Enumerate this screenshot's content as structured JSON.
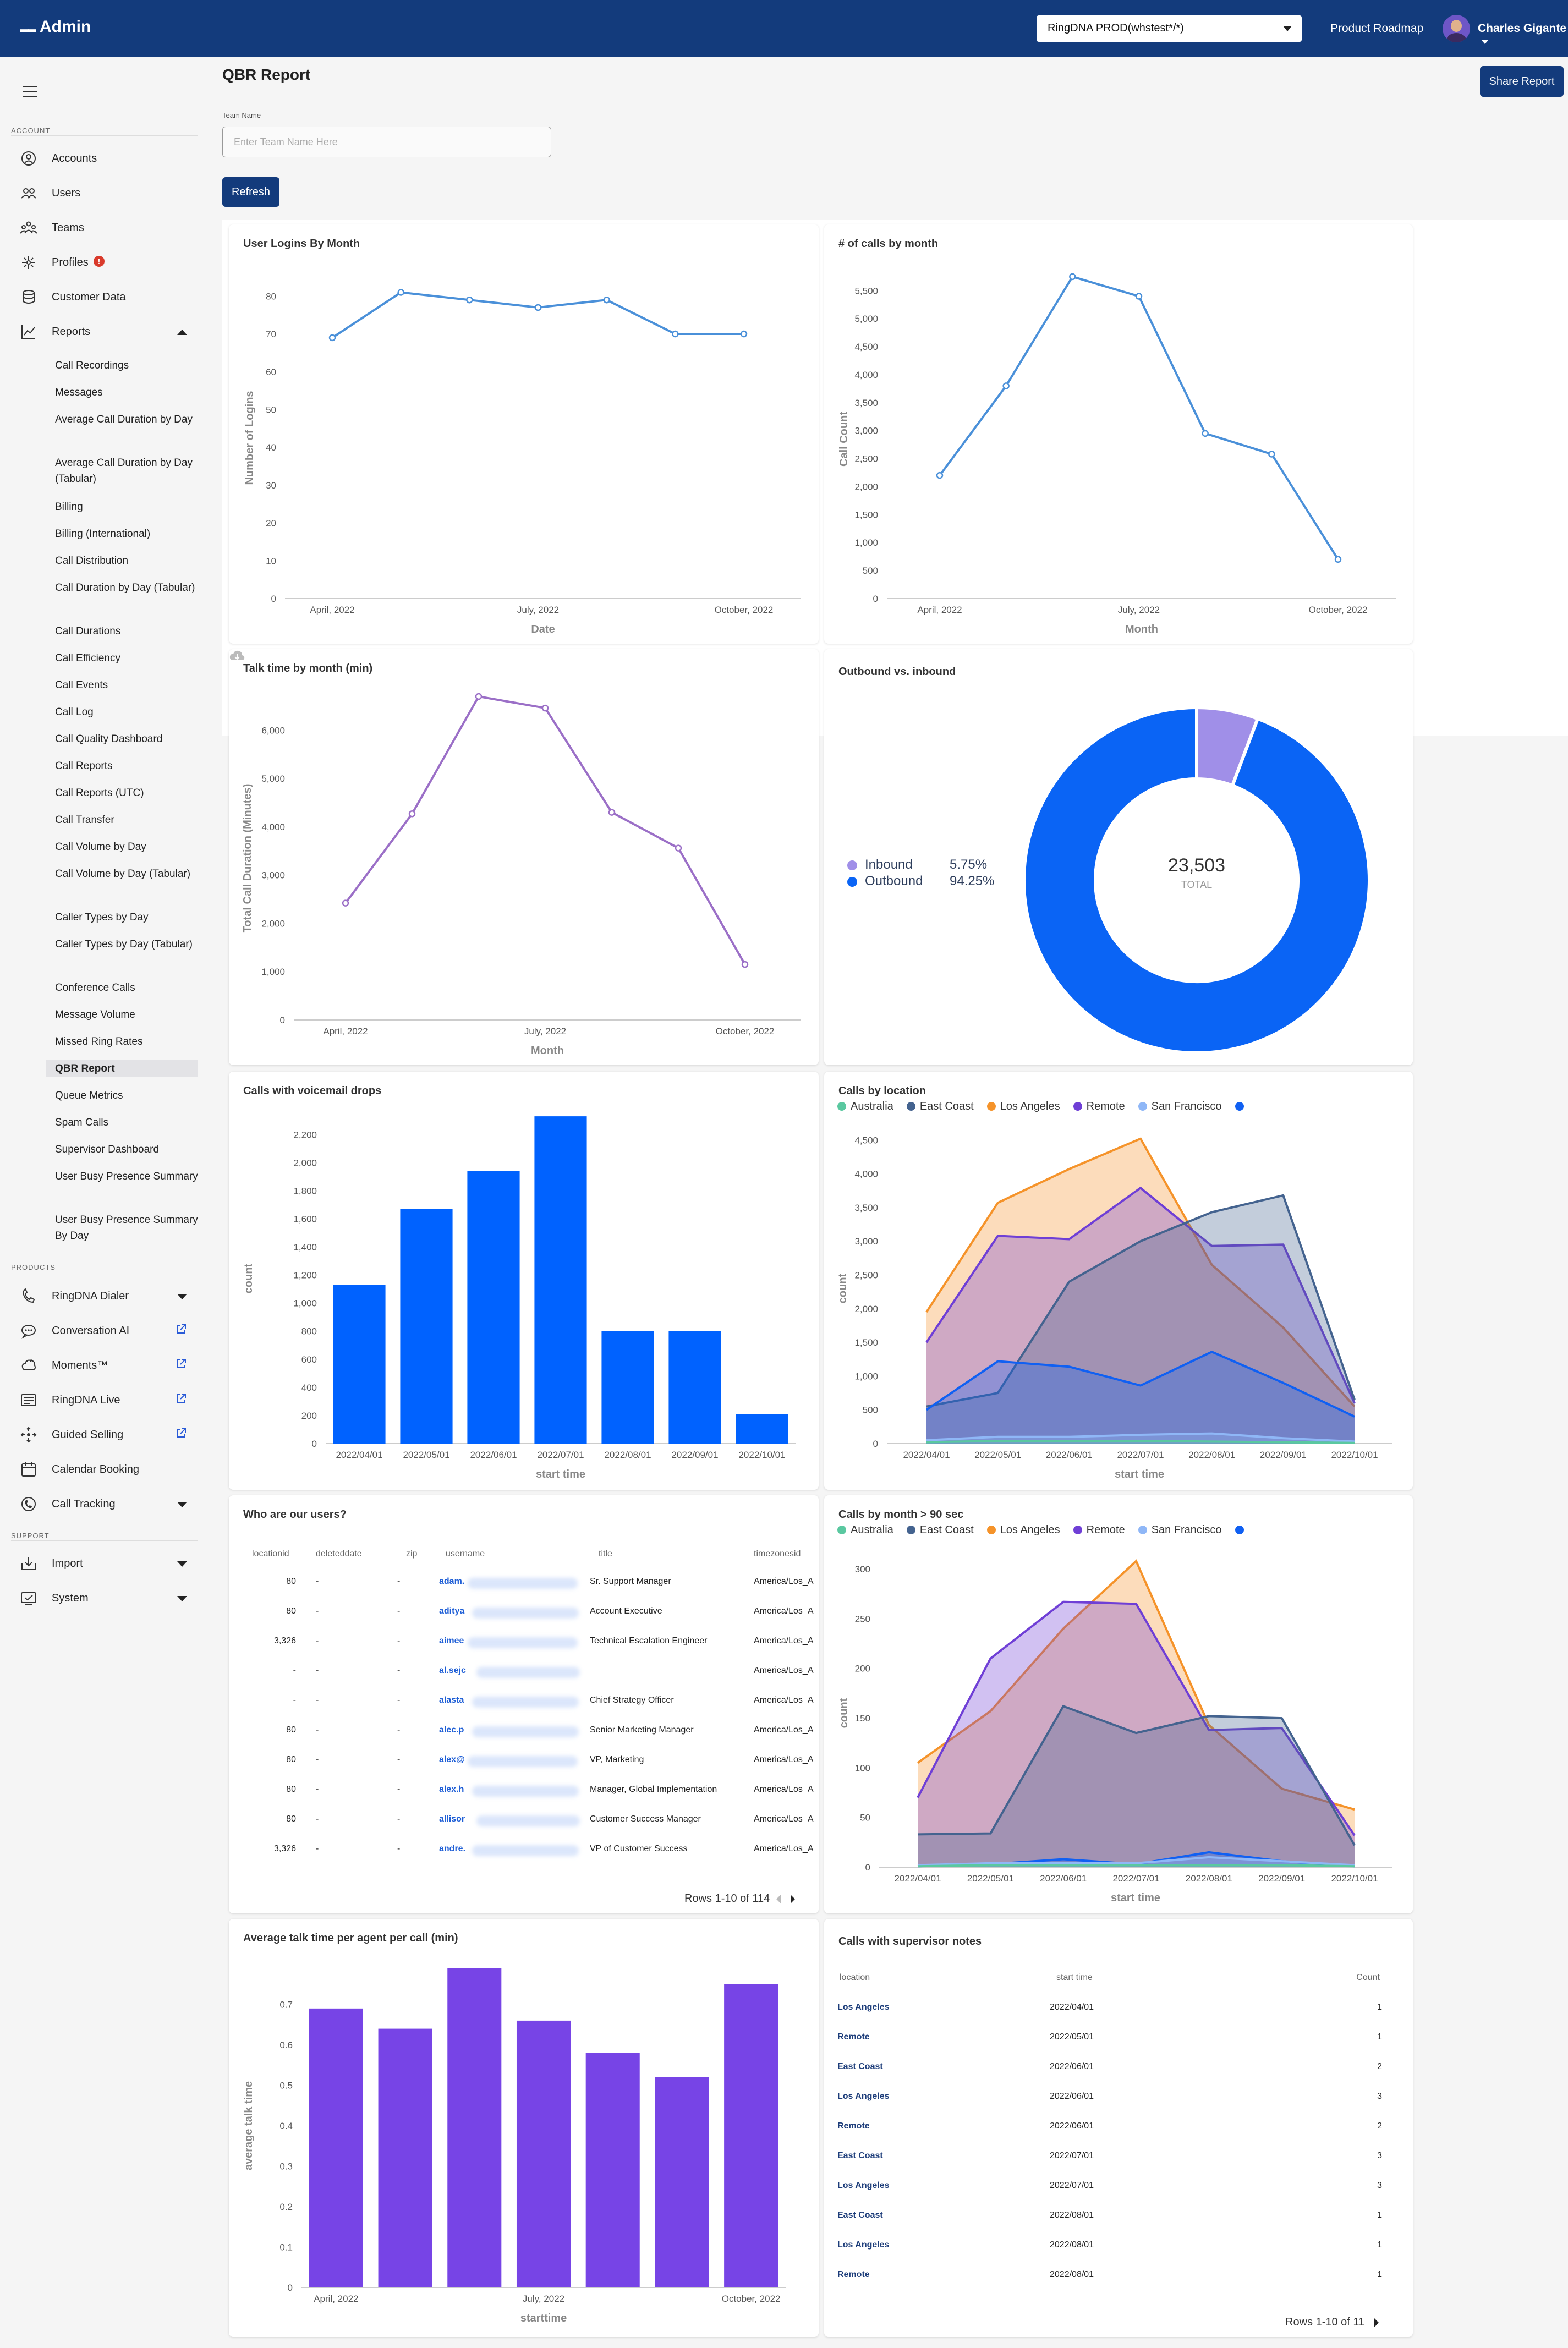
{
  "header": {
    "app_title": "Admin",
    "environment": "RingDNA PROD(whstest*/*)",
    "product_roadmap": "Product Roadmap",
    "user_name": "Charles Gigante"
  },
  "sidebar": {
    "account_section": "ACCOUNT",
    "account_items": [
      {
        "label": "Accounts",
        "icon": "accounts-icon"
      },
      {
        "label": "Users",
        "icon": "users-icon"
      },
      {
        "label": "Teams",
        "icon": "teams-icon"
      },
      {
        "label": "Profiles",
        "icon": "profiles-icon",
        "badge": "!"
      },
      {
        "label": "Customer Data",
        "icon": "database-icon"
      },
      {
        "label": "Reports",
        "icon": "chart-line-icon",
        "expanded": true
      }
    ],
    "report_items": [
      "Call Recordings",
      "Messages",
      "Average Call Duration by Day",
      "Average Call Duration by Day (Tabular)",
      "Billing",
      "Billing (International)",
      "Call Distribution",
      "Call Duration by Day (Tabular)",
      "Call Durations",
      "Call Efficiency",
      "Call Events",
      "Call Log",
      "Call Quality Dashboard",
      "Call Reports",
      "Call Reports (UTC)",
      "Call Transfer",
      "Call Volume by Day",
      "Call Volume by Day (Tabular)",
      "Caller Types by Day",
      "Caller Types by Day (Tabular)",
      "Conference Calls",
      "Message Volume",
      "Missed Ring Rates",
      "QBR Report",
      "Queue Metrics",
      "Spam Calls",
      "Supervisor Dashboard",
      "User Busy Presence Summary",
      "User Busy Presence Summary By Day"
    ],
    "active_report": "QBR Report",
    "products_section": "PRODUCTS",
    "product_items": [
      {
        "label": "RingDNA Dialer",
        "icon": "dialer-icon"
      },
      {
        "label": "Conversation AI",
        "icon": "conversation-ai-icon"
      },
      {
        "label": "Moments™",
        "icon": "moments-icon"
      },
      {
        "label": "RingDNA Live",
        "icon": "live-icon"
      },
      {
        "label": "Guided Selling",
        "icon": "guided-selling-icon"
      },
      {
        "label": "Calendar Booking",
        "icon": "calendar-icon"
      },
      {
        "label": "Call Tracking",
        "icon": "call-tracking-icon"
      }
    ],
    "support_section": "SUPPORT",
    "support_items": [
      {
        "label": "Import",
        "icon": "import-icon"
      },
      {
        "label": "System",
        "icon": "system-icon"
      }
    ]
  },
  "main": {
    "title": "QBR Report",
    "share_button": "Share Report",
    "team_label": "Team Name",
    "team_placeholder": "Enter Team Name Here",
    "team_value": "",
    "refresh_button": "Refresh"
  },
  "colors": {
    "header": "#133b7c",
    "blue_line": "#4a90d9",
    "purple_line": "#9b6fc7",
    "bar_blue": "#0062ff",
    "bar_purple": "#7744e6",
    "inbound": "#a08fe8",
    "outbound": "#0a64f5",
    "australia": "#5ac8a0",
    "east_coast": "#44638f",
    "los_angeles": "#f5932a",
    "remote": "#6f3fd6",
    "san_francisco": "#8fb7f7",
    "sixth_series": "#1060f2"
  },
  "charts": {
    "logins": {
      "title": "User Logins By Month",
      "chart_data": {
        "type": "line",
        "x": [
          "2022-04",
          "2022-05",
          "2022-06",
          "2022-07",
          "2022-08",
          "2022-09",
          "2022-10"
        ],
        "values": [
          69,
          81,
          79,
          77,
          79,
          70,
          70
        ],
        "ylim": [
          0,
          85
        ],
        "yticks": [
          0,
          10,
          20,
          30,
          40,
          50,
          60,
          70,
          80
        ],
        "xticks": [
          "April, 2022",
          "July, 2022",
          "October, 2022"
        ],
        "xlabel": "Date",
        "ylabel": "Number of Logins"
      }
    },
    "calls": {
      "title": "# of calls by month",
      "chart_data": {
        "type": "line",
        "x": [
          "2022-04",
          "2022-05",
          "2022-06",
          "2022-07",
          "2022-08",
          "2022-09",
          "2022-10"
        ],
        "values": [
          2200,
          3800,
          5750,
          5400,
          2950,
          2580,
          700
        ],
        "ylim": [
          0,
          5700
        ],
        "yticks": [
          0,
          500,
          1000,
          1500,
          2000,
          2500,
          3000,
          3500,
          4000,
          4500,
          5000,
          5500
        ],
        "ytick_labels": [
          "0",
          "500",
          "1,000",
          "1,500",
          "2,000",
          "2,500",
          "3,000",
          "3,500",
          "4,000",
          "4,500",
          "5,000",
          "5,500"
        ],
        "xticks": [
          "April, 2022",
          "July, 2022",
          "October, 2022"
        ],
        "xlabel": "Month",
        "ylabel": "Call Count"
      }
    },
    "talk": {
      "title": "Talk time by month (min)",
      "chart_data": {
        "type": "line",
        "x": [
          "2022-04",
          "2022-05",
          "2022-06",
          "2022-07",
          "2022-08",
          "2022-09",
          "2022-10"
        ],
        "values": [
          2420,
          4270,
          6700,
          6460,
          4300,
          3560,
          1150
        ],
        "ylim": [
          0,
          6700
        ],
        "yticks": [
          0,
          1000,
          2000,
          3000,
          4000,
          5000,
          6000
        ],
        "ytick_labels": [
          "0",
          "1,000",
          "2,000",
          "3,000",
          "4,000",
          "5,000",
          "6,000"
        ],
        "xticks": [
          "April, 2022",
          "July, 2022",
          "October, 2022"
        ],
        "xlabel": "Month",
        "ylabel": "Total Call Duration (Minutes)"
      }
    },
    "donut": {
      "title": "Outbound vs. inbound",
      "chart_data": {
        "type": "pie",
        "labels": [
          "Inbound",
          "Outbound"
        ],
        "values": [
          5.75,
          94.25
        ],
        "value_labels": [
          "5.75%",
          "94.25%"
        ],
        "total": "23,503",
        "total_label": "TOTAL"
      }
    },
    "voicemail": {
      "title": "Calls with voicemail drops",
      "chart_data": {
        "type": "bar",
        "categories": [
          "2022/04/01",
          "2022/05/01",
          "2022/06/01",
          "2022/07/01",
          "2022/08/01",
          "2022/09/01",
          "2022/10/01"
        ],
        "values": [
          1130,
          1670,
          1940,
          2330,
          800,
          800,
          210
        ],
        "ylim": [
          0,
          2350
        ],
        "yticks": [
          0,
          200,
          400,
          600,
          800,
          1000,
          1200,
          1400,
          1600,
          1800,
          2000,
          2200
        ],
        "ytick_labels": [
          "0",
          "200",
          "400",
          "600",
          "800",
          "1,000",
          "1,200",
          "1,400",
          "1,600",
          "1,800",
          "2,000",
          "2,200"
        ],
        "xlabel": "start time",
        "ylabel": "count"
      }
    },
    "location": {
      "title": "Calls by location",
      "legend": [
        "Australia",
        "East Coast",
        "Los Angeles",
        "Remote",
        "San Francisco",
        ""
      ],
      "chart_data": {
        "type": "area",
        "categories": [
          "2022/04/01",
          "2022/05/01",
          "2022/06/01",
          "2022/07/01",
          "2022/08/01",
          "2022/09/01",
          "2022/10/01"
        ],
        "series": [
          {
            "name": "Australia",
            "values": [
              20,
              40,
              40,
              40,
              30,
              20,
              10
            ]
          },
          {
            "name": "East Coast",
            "values": [
              550,
              750,
              2400,
              3000,
              3430,
              3680,
              650
            ]
          },
          {
            "name": "Los Angeles",
            "values": [
              1950,
              3570,
              4070,
              4520,
              2650,
              1720,
              550
            ]
          },
          {
            "name": "Remote",
            "values": [
              1500,
              3080,
              3030,
              3790,
              2930,
              2950,
              600
            ]
          },
          {
            "name": "San Francisco",
            "values": [
              50,
              100,
              100,
              130,
              150,
              80,
              30
            ]
          },
          {
            "name": "",
            "values": [
              500,
              1220,
              1140,
              860,
              1360,
              900,
              400
            ]
          }
        ],
        "ylim": [
          0,
          4600
        ],
        "yticks": [
          0,
          500,
          1000,
          1500,
          2000,
          2500,
          3000,
          3500,
          4000,
          4500
        ],
        "ytick_labels": [
          "0",
          "500",
          "1,000",
          "1,500",
          "2,000",
          "2,500",
          "3,000",
          "3,500",
          "4,000",
          "4,500"
        ],
        "xlabel": "start time",
        "ylabel": "count"
      }
    },
    "calls90": {
      "title": "Calls by month > 90 sec",
      "legend": [
        "Australia",
        "East Coast",
        "Los Angeles",
        "Remote",
        "San Francisco",
        ""
      ],
      "chart_data": {
        "type": "area",
        "categories": [
          "2022/04/01",
          "2022/05/01",
          "2022/06/01",
          "2022/07/01",
          "2022/08/01",
          "2022/09/01",
          "2022/10/01"
        ],
        "series": [
          {
            "name": "Australia",
            "values": [
              1,
              2,
              2,
              2,
              2,
              2,
              1
            ]
          },
          {
            "name": "East Coast",
            "values": [
              33,
              34,
              162,
              135,
              152,
              150,
              22
            ]
          },
          {
            "name": "Los Angeles",
            "values": [
              105,
              157,
              240,
              308,
              143,
              79,
              58
            ]
          },
          {
            "name": "Remote",
            "values": [
              70,
              210,
              267,
              265,
              138,
              140,
              32
            ]
          },
          {
            "name": "San Francisco",
            "values": [
              2,
              4,
              4,
              4,
              10,
              6,
              2
            ]
          },
          {
            "name": "",
            "values": [
              1,
              3,
              8,
              3,
              15,
              6,
              1
            ]
          }
        ],
        "ylim": [
          0,
          310
        ],
        "yticks": [
          0,
          50,
          100,
          150,
          200,
          250,
          300
        ],
        "xlabel": "start time",
        "ylabel": "count"
      }
    },
    "avg": {
      "title": "Average talk time per agent per call (min)",
      "chart_data": {
        "type": "bar",
        "categories": [
          "2022-04",
          "2022-05",
          "2022-06",
          "2022-07",
          "2022-08",
          "2022-09",
          "2022-10"
        ],
        "values": [
          0.69,
          0.64,
          0.79,
          0.66,
          0.58,
          0.52,
          0.75
        ],
        "ylim": [
          0,
          0.8
        ],
        "yticks": [
          0,
          0.1,
          0.2,
          0.3,
          0.4,
          0.5,
          0.6,
          0.7
        ],
        "xticks": [
          "April, 2022",
          "July, 2022",
          "October, 2022"
        ],
        "xlabel": "starttime",
        "ylabel": "average talk time"
      }
    }
  },
  "users_table": {
    "title": "Who are our users?",
    "columns": [
      "locationid",
      "deleteddate",
      "zip",
      "username",
      "title",
      "timezonesid"
    ],
    "rows": [
      [
        "80",
        "-",
        "-",
        "adam.",
        "Sr. Support Manager",
        "America/Los_A"
      ],
      [
        "80",
        "-",
        "-",
        "aditya",
        "Account Executive",
        "America/Los_A"
      ],
      [
        "3,326",
        "-",
        "-",
        "aimee",
        "Technical Escalation Engineer",
        "America/Los_A"
      ],
      [
        "-",
        "-",
        "-",
        "al.sejc",
        "",
        "America/Los_A"
      ],
      [
        "-",
        "-",
        "-",
        "alasta",
        "Chief Strategy Officer",
        "America/Los_A"
      ],
      [
        "80",
        "-",
        "-",
        "alec.p",
        "Senior Marketing Manager",
        "America/Los_A"
      ],
      [
        "80",
        "-",
        "-",
        "alex@",
        "VP, Marketing",
        "America/Los_A"
      ],
      [
        "80",
        "-",
        "-",
        "alex.h",
        "Manager, Global Implementation",
        "America/Los_A"
      ],
      [
        "80",
        "-",
        "-",
        "allisor",
        "Customer Success Manager",
        "America/Los_A"
      ],
      [
        "3,326",
        "-",
        "-",
        "andre.",
        "VP of Customer Success",
        "America/Los_A"
      ]
    ],
    "pager": "Rows 1-10 of 114"
  },
  "supervisor_table": {
    "title": "Calls with supervisor notes",
    "columns": [
      "location",
      "start time",
      "Count"
    ],
    "rows": [
      [
        "Los Angeles",
        "2022/04/01",
        "1"
      ],
      [
        "Remote",
        "2022/05/01",
        "1"
      ],
      [
        "East Coast",
        "2022/06/01",
        "2"
      ],
      [
        "Los Angeles",
        "2022/06/01",
        "3"
      ],
      [
        "Remote",
        "2022/06/01",
        "2"
      ],
      [
        "East Coast",
        "2022/07/01",
        "3"
      ],
      [
        "Los Angeles",
        "2022/07/01",
        "3"
      ],
      [
        "East Coast",
        "2022/08/01",
        "1"
      ],
      [
        "Los Angeles",
        "2022/08/01",
        "1"
      ],
      [
        "Remote",
        "2022/08/01",
        "1"
      ]
    ],
    "pager": "Rows 1-10 of 11"
  }
}
